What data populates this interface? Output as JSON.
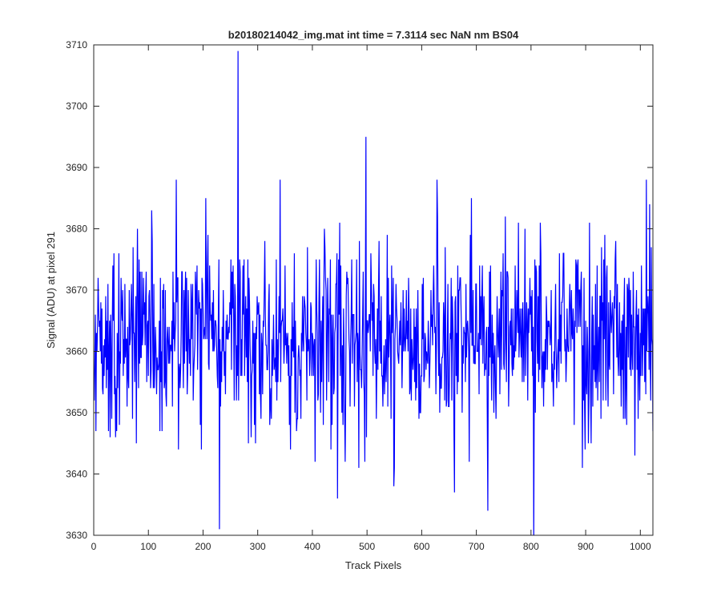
{
  "chart_data": {
    "type": "line",
    "title": "b20180214042_img.mat int time = 7.3114 sec  NaN nm BS04",
    "xlabel": "Track Pixels",
    "ylabel": "Signal (ADU) at pixel 291",
    "xlim": [
      0,
      1023
    ],
    "ylim": [
      3630,
      3710
    ],
    "x_ticks": [
      0,
      100,
      200,
      300,
      400,
      500,
      600,
      700,
      800,
      900,
      1000
    ],
    "y_ticks": [
      3630,
      3640,
      3650,
      3660,
      3670,
      3680,
      3690,
      3700,
      3710
    ],
    "grid": false,
    "line_color": "#0000ff",
    "n_points": 1023,
    "baseline": 3662,
    "noise_std": 7.5,
    "noise_seed": 291,
    "peaks": [
      {
        "x": 3,
        "y": 3647
      },
      {
        "x": 77,
        "y": 3645
      },
      {
        "x": 105,
        "y": 3683
      },
      {
        "x": 150,
        "y": 3688
      },
      {
        "x": 196,
        "y": 3644
      },
      {
        "x": 204,
        "y": 3685
      },
      {
        "x": 229,
        "y": 3631
      },
      {
        "x": 263,
        "y": 3709
      },
      {
        "x": 340,
        "y": 3688
      },
      {
        "x": 445,
        "y": 3636
      },
      {
        "x": 459,
        "y": 3642
      },
      {
        "x": 497,
        "y": 3695
      },
      {
        "x": 548,
        "y": 3638
      },
      {
        "x": 627,
        "y": 3688
      },
      {
        "x": 659,
        "y": 3637
      },
      {
        "x": 690,
        "y": 3685
      },
      {
        "x": 720,
        "y": 3634
      },
      {
        "x": 804,
        "y": 3629
      },
      {
        "x": 904,
        "y": 3645
      },
      {
        "x": 1010,
        "y": 3688
      },
      {
        "x": 1016,
        "y": 3684
      },
      {
        "x": 1022,
        "y": 3647
      }
    ]
  }
}
